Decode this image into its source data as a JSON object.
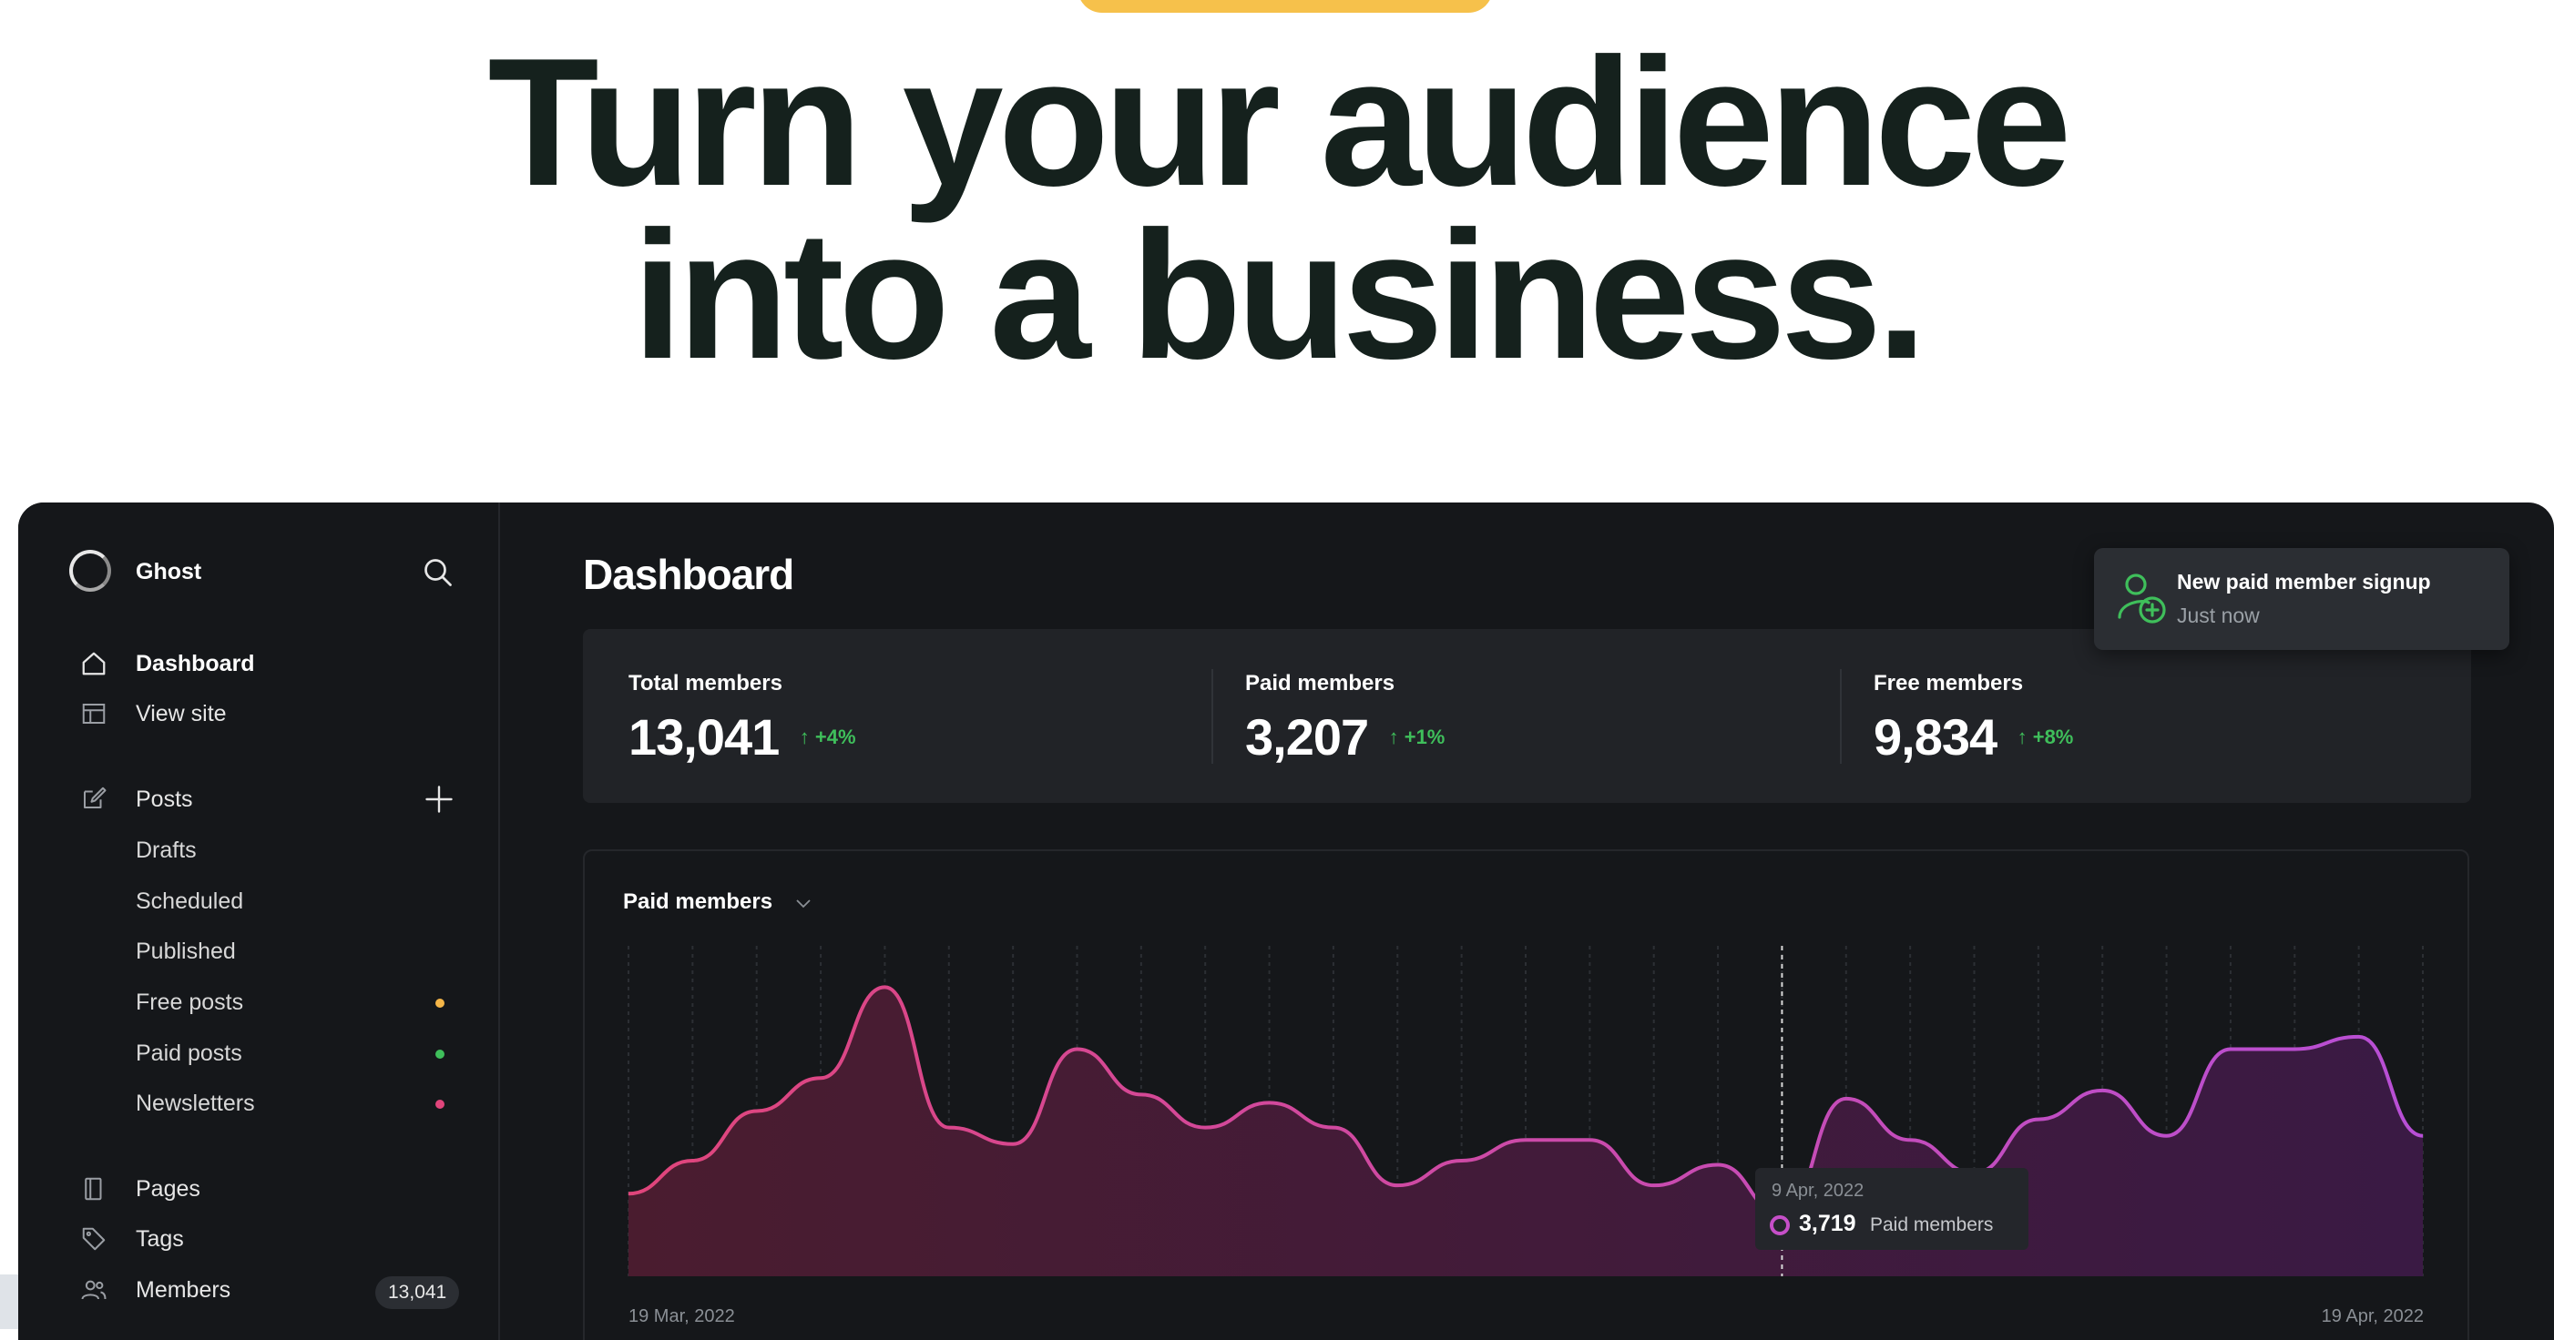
{
  "hero": {
    "line1": "Turn your audience",
    "line2": "into a business."
  },
  "sidebar": {
    "brand": "Ghost",
    "nav": [
      {
        "label": "Dashboard",
        "icon": "home-icon",
        "active": true
      },
      {
        "label": "View site",
        "icon": "layout-icon"
      }
    ],
    "posts": {
      "label": "Posts",
      "icon": "edit-icon"
    },
    "post_filters": [
      {
        "label": "Drafts"
      },
      {
        "label": "Scheduled"
      },
      {
        "label": "Published"
      },
      {
        "label": "Free posts",
        "dot_color": "#f5b648"
      },
      {
        "label": "Paid posts",
        "dot_color": "#3fbf5b"
      },
      {
        "label": "Newsletters",
        "dot_color": "#e0457b"
      }
    ],
    "bottom_nav": [
      {
        "label": "Pages",
        "icon": "page-icon"
      },
      {
        "label": "Tags",
        "icon": "tag-icon"
      },
      {
        "label": "Members",
        "icon": "members-icon",
        "badge": "13,041"
      }
    ]
  },
  "main": {
    "title": "Dashboard",
    "stats": [
      {
        "label": "Total members",
        "value": "13,041",
        "delta": "+4%"
      },
      {
        "label": "Paid members",
        "value": "3,207",
        "delta": "+1%"
      },
      {
        "label": "Free members",
        "value": "9,834",
        "delta": "+8%"
      }
    ],
    "toast": {
      "title": "New paid member signup",
      "subtitle": "Just now"
    }
  },
  "colors": {
    "accent_green": "#3fbf5b",
    "chart_start": "#e0457b",
    "chart_end": "#b84fd6",
    "hero_text": "#15211d"
  },
  "chart": {
    "selector_label": "Paid members",
    "x_start": "19 Mar, 2022",
    "x_end": "19 Apr, 2022",
    "tooltip": {
      "date": "9 Apr, 2022",
      "value": "3,719",
      "series": "Paid members"
    }
  },
  "chart_data": {
    "type": "area",
    "series": [
      {
        "name": "Paid members",
        "values": [
          20,
          28,
          40,
          48,
          70,
          36,
          32,
          55,
          44,
          36,
          42,
          36,
          22,
          28,
          33,
          33,
          22,
          27,
          15,
          43,
          33,
          25,
          38,
          45,
          34,
          55,
          55,
          58,
          34
        ]
      }
    ],
    "x_range": [
      "19 Mar, 2022",
      "19 Apr, 2022"
    ],
    "highlight": {
      "x": "9 Apr, 2022",
      "value": 3719
    }
  }
}
